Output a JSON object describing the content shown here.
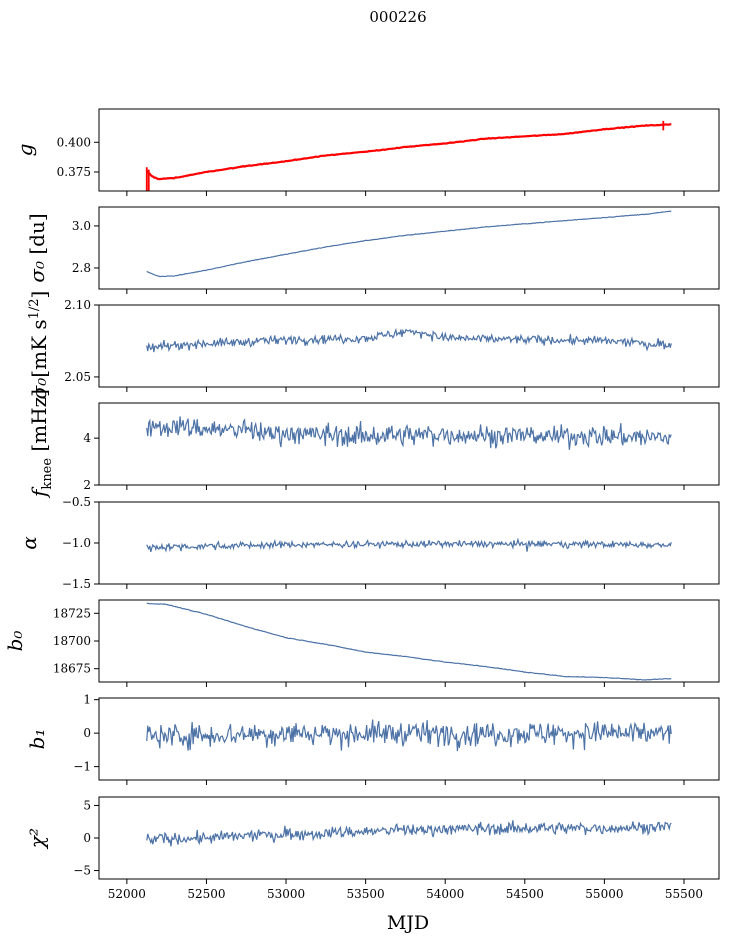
{
  "figure": {
    "title": "000226",
    "xlabel": "MJD"
  },
  "colors": {
    "series": "#4c72a6",
    "fit": "#ff0000",
    "axis": "#000000"
  },
  "chart_data": [
    {
      "type": "line",
      "ylabel": "g",
      "x_range": [
        52125,
        55420
      ],
      "ylim": [
        0.359,
        0.428
      ],
      "yticks": [
        0.375,
        0.4
      ],
      "ytick_labels": [
        "0.375",
        "0.400"
      ],
      "xticks": [
        52000,
        52500,
        53000,
        53500,
        54000,
        54500,
        55000,
        55500
      ],
      "series": [
        {
          "points": [
            [
              52125,
              0.376
            ],
            [
              52160,
              0.371
            ],
            [
              52200,
              0.369
            ],
            [
              52300,
              0.37
            ],
            [
              52500,
              0.375
            ],
            [
              52750,
              0.38
            ],
            [
              53000,
              0.384
            ],
            [
              53250,
              0.389
            ],
            [
              53500,
              0.392
            ],
            [
              53750,
              0.396
            ],
            [
              54000,
              0.399
            ],
            [
              54250,
              0.403
            ],
            [
              54500,
              0.405
            ],
            [
              54750,
              0.407
            ],
            [
              55000,
              0.411
            ],
            [
              55250,
              0.414
            ],
            [
              55420,
              0.415
            ]
          ]
        },
        {
          "points": [
            [
              52125,
              0.376
            ],
            [
              52160,
              0.371
            ],
            [
              52200,
              0.369
            ],
            [
              52300,
              0.37
            ],
            [
              52500,
              0.375
            ],
            [
              52750,
              0.38
            ],
            [
              53000,
              0.384
            ],
            [
              53250,
              0.389
            ],
            [
              53500,
              0.392
            ],
            [
              53750,
              0.396
            ],
            [
              54000,
              0.399
            ],
            [
              54250,
              0.403
            ],
            [
              54500,
              0.405
            ],
            [
              54750,
              0.407
            ],
            [
              55000,
              0.411
            ],
            [
              55250,
              0.414
            ],
            [
              55420,
              0.415
            ]
          ]
        }
      ]
    },
    {
      "type": "line",
      "ylabel": "σ₀ [du]",
      "x_range": [
        52125,
        55420
      ],
      "ylim": [
        2.7,
        3.09
      ],
      "yticks": [
        2.8,
        3.0
      ],
      "ytick_labels": [
        "2.8",
        "3.0"
      ],
      "xticks": [
        52000,
        52500,
        53000,
        53500,
        54000,
        54500,
        55000,
        55500
      ],
      "series": [
        {
          "points": [
            [
              52125,
              2.783
            ],
            [
              52200,
              2.76
            ],
            [
              52300,
              2.762
            ],
            [
              52500,
              2.79
            ],
            [
              52750,
              2.83
            ],
            [
              53000,
              2.865
            ],
            [
              53250,
              2.9
            ],
            [
              53500,
              2.93
            ],
            [
              53750,
              2.955
            ],
            [
              54000,
              2.975
            ],
            [
              54250,
              2.995
            ],
            [
              54500,
              3.01
            ],
            [
              54750,
              3.025
            ],
            [
              55000,
              3.04
            ],
            [
              55250,
              3.055
            ],
            [
              55420,
              3.07
            ]
          ]
        }
      ]
    },
    {
      "type": "line",
      "ylabel": "σ₀[mK s^1/2]",
      "x_range": [
        52125,
        55420
      ],
      "ylim": [
        2.043,
        2.1
      ],
      "yticks": [
        2.05,
        2.1
      ],
      "ytick_labels": [
        "2.05",
        "2.10"
      ],
      "xticks": [
        52000,
        52500,
        53000,
        53500,
        54000,
        54500,
        55000,
        55500
      ],
      "series": [
        {
          "mean": 2.074,
          "noise": 0.003,
          "points": [
            [
              52125,
              2.07
            ],
            [
              52400,
              2.073
            ],
            [
              52700,
              2.074
            ],
            [
              53000,
              2.076
            ],
            [
              53500,
              2.077
            ],
            [
              53800,
              2.082
            ],
            [
              54000,
              2.077
            ],
            [
              54500,
              2.076
            ],
            [
              55000,
              2.075
            ],
            [
              55420,
              2.072
            ]
          ]
        }
      ]
    },
    {
      "type": "line",
      "ylabel": "f_knee [mHz]",
      "x_range": [
        52125,
        55420
      ],
      "ylim": [
        2.0,
        5.5
      ],
      "yticks": [
        2,
        4
      ],
      "ytick_labels": [
        "2",
        "4"
      ],
      "xticks": [
        52000,
        52500,
        53000,
        53500,
        54000,
        54500,
        55000,
        55500
      ],
      "series": [
        {
          "mean": 4.2,
          "noise": 0.45,
          "points": [
            [
              52125,
              4.6
            ],
            [
              52500,
              4.4
            ],
            [
              53000,
              4.2
            ],
            [
              53500,
              4.1
            ],
            [
              54000,
              4.15
            ],
            [
              54500,
              4.1
            ],
            [
              55000,
              4.1
            ],
            [
              55420,
              4.0
            ]
          ]
        }
      ]
    },
    {
      "type": "line",
      "ylabel": "α",
      "x_range": [
        52125,
        55420
      ],
      "ylim": [
        -1.5,
        -0.5
      ],
      "yticks": [
        -1.5,
        -1.0,
        -0.5
      ],
      "ytick_labels": [
        "−1.5",
        "−1.0",
        "−0.5"
      ],
      "xticks": [
        52000,
        52500,
        53000,
        53500,
        54000,
        54500,
        55000,
        55500
      ],
      "series": [
        {
          "mean": -1.02,
          "noise": 0.04,
          "points": [
            [
              52125,
              -1.05
            ],
            [
              53000,
              -1.02
            ],
            [
              54000,
              -1.01
            ],
            [
              55420,
              -1.02
            ]
          ]
        }
      ]
    },
    {
      "type": "line",
      "ylabel": "b₀",
      "x_range": [
        52125,
        55420
      ],
      "ylim": [
        18663,
        18737
      ],
      "yticks": [
        18675,
        18700,
        18725
      ],
      "ytick_labels": [
        "18675",
        "18700",
        "18725"
      ],
      "xticks": [
        52000,
        52500,
        53000,
        53500,
        54000,
        54500,
        55000,
        55500
      ],
      "series": [
        {
          "points": [
            [
              52125,
              18734
            ],
            [
              52250,
              18733
            ],
            [
              52500,
              18724
            ],
            [
              52750,
              18713
            ],
            [
              53000,
              18703
            ],
            [
              53250,
              18697
            ],
            [
              53500,
              18690
            ],
            [
              53750,
              18686
            ],
            [
              54000,
              18681
            ],
            [
              54250,
              18677
            ],
            [
              54500,
              18672
            ],
            [
              54750,
              18668
            ],
            [
              55000,
              18667
            ],
            [
              55250,
              18665
            ],
            [
              55420,
              18666
            ]
          ]
        }
      ]
    },
    {
      "type": "line",
      "ylabel": "b₁",
      "x_range": [
        52125,
        55420
      ],
      "ylim": [
        -1.4,
        1.05
      ],
      "yticks": [
        -1,
        0,
        1
      ],
      "ytick_labels": [
        "−1",
        "0",
        "1"
      ],
      "xticks": [
        52000,
        52500,
        53000,
        53500,
        54000,
        54500,
        55000,
        55500
      ],
      "series": [
        {
          "mean": 0.0,
          "noise": 0.35,
          "points": [
            [
              52125,
              -0.1
            ],
            [
              53000,
              0.0
            ],
            [
              54000,
              0.0
            ],
            [
              55420,
              0.0
            ]
          ]
        }
      ]
    },
    {
      "type": "line",
      "ylabel": "χ²",
      "x_range": [
        52125,
        55420
      ],
      "ylim": [
        -6.3,
        6.3
      ],
      "yticks": [
        -5,
        0,
        5
      ],
      "ytick_labels": [
        "−5",
        "0",
        "5"
      ],
      "xticks": [
        52000,
        52500,
        53000,
        53500,
        54000,
        54500,
        55000,
        55500
      ],
      "xtick_labels": [
        "52000",
        "52500",
        "53000",
        "53500",
        "54000",
        "54500",
        "55000",
        "55500"
      ],
      "series": [
        {
          "mean": 0.8,
          "noise": 0.9,
          "points": [
            [
              52125,
              -0.2
            ],
            [
              52500,
              0.0
            ],
            [
              53000,
              0.6
            ],
            [
              53500,
              1.0
            ],
            [
              54000,
              1.4
            ],
            [
              54500,
              1.5
            ],
            [
              55000,
              1.5
            ],
            [
              55420,
              1.8
            ]
          ]
        }
      ]
    }
  ]
}
